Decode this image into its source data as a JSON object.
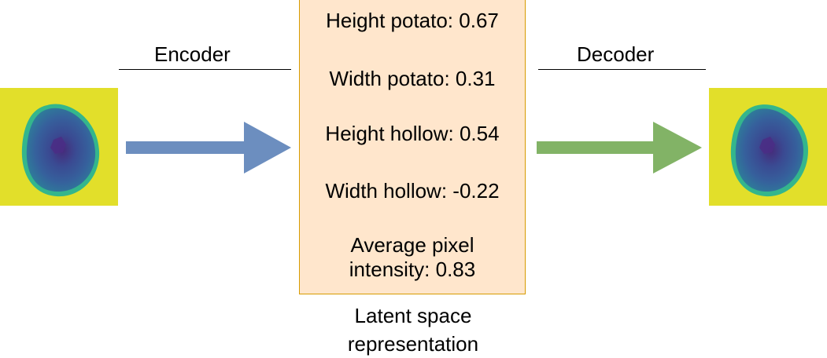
{
  "encoder": {
    "label": "Encoder"
  },
  "decoder": {
    "label": "Decoder"
  },
  "latent": {
    "features": [
      "Height potato: 0.67",
      "Width potato: 0.31",
      "Height hollow: 0.54",
      "Width hollow: -0.22",
      "Average pixel intensity: 0.83"
    ],
    "caption": "Latent space representation"
  },
  "colors": {
    "encoder_arrow": "#6c8ebf",
    "decoder_arrow": "#82b366",
    "latent_fill": "#ffe6cc",
    "latent_border": "#d79b00",
    "image_background": "#e2df2a",
    "image_ring": "#2fb18f",
    "image_body": "#39559a",
    "image_core": "#462a79"
  },
  "icons": {
    "input_image": "potato-scan-image",
    "output_image": "potato-scan-image",
    "encoder_arrow": "right-arrow-icon",
    "decoder_arrow": "right-arrow-icon"
  }
}
